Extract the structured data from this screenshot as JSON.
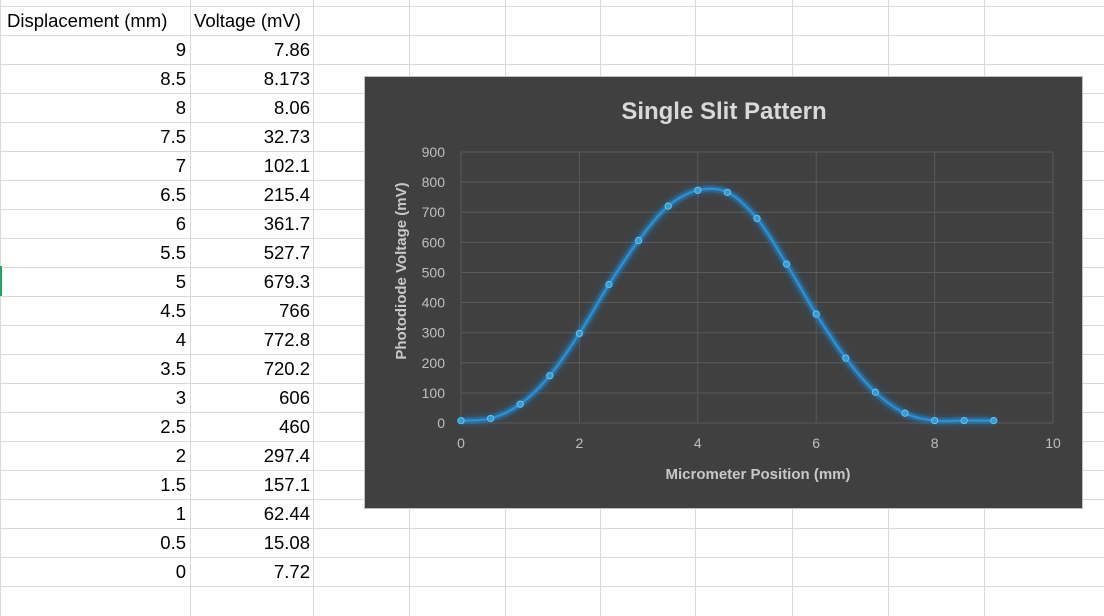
{
  "sheet": {
    "headers": [
      "Displacement (mm)",
      "Voltage (mV)"
    ],
    "rows": [
      [
        "9",
        "7.86"
      ],
      [
        "8.5",
        "8.173"
      ],
      [
        "8",
        "8.06"
      ],
      [
        "7.5",
        "32.73"
      ],
      [
        "7",
        "102.1"
      ],
      [
        "6.5",
        "215.4"
      ],
      [
        "6",
        "361.7"
      ],
      [
        "5.5",
        "527.7"
      ],
      [
        "5",
        "679.3"
      ],
      [
        "4.5",
        "766"
      ],
      [
        "4",
        "772.8"
      ],
      [
        "3.5",
        "720.2"
      ],
      [
        "3",
        "606"
      ],
      [
        "2.5",
        "460"
      ],
      [
        "2",
        "297.4"
      ],
      [
        "1.5",
        "157.1"
      ],
      [
        "1",
        "62.44"
      ],
      [
        "0.5",
        "15.08"
      ],
      [
        "0",
        "7.72"
      ]
    ]
  },
  "chart_data": {
    "type": "scatter",
    "title": "Single Slit Pattern",
    "xlabel": "Micrometer Position (mm)",
    "ylabel": "Photodiode Voltage (mV)",
    "xlim": [
      0,
      10
    ],
    "ylim": [
      0,
      900
    ],
    "xticks": [
      0,
      2,
      4,
      6,
      8,
      10
    ],
    "yticks": [
      0,
      100,
      200,
      300,
      400,
      500,
      600,
      700,
      800,
      900
    ],
    "grid": true,
    "series": [
      {
        "name": "Voltage (mV)",
        "color": "#2e9fd8",
        "x": [
          9,
          8.5,
          8,
          7.5,
          7,
          6.5,
          6,
          5.5,
          5,
          4.5,
          4,
          3.5,
          3,
          2.5,
          2,
          1.5,
          1,
          0.5,
          0
        ],
        "y": [
          7.86,
          8.173,
          8.06,
          32.73,
          102.1,
          215.4,
          361.7,
          527.7,
          679.3,
          766,
          772.8,
          720.2,
          606,
          460,
          297.4,
          157.1,
          62.44,
          15.08,
          7.72
        ]
      }
    ]
  }
}
